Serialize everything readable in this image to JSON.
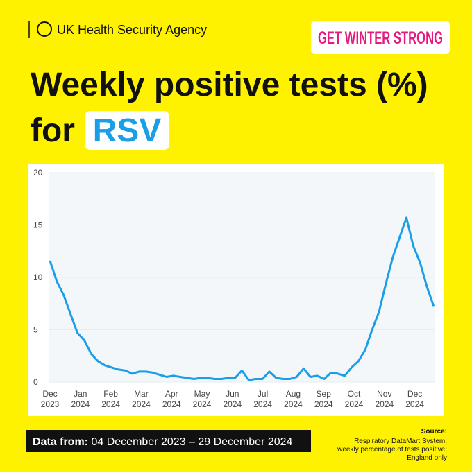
{
  "header": {
    "agency": "UK Health Security Agency",
    "badge": "GET WINTER STRONG",
    "title_line1": "Weekly positive tests (%)",
    "title_line2": "for",
    "title_highlight": "RSV"
  },
  "chart_data": {
    "type": "line",
    "color": "#1a9ee8",
    "ylim": [
      0,
      20
    ],
    "yticks": [
      0,
      5,
      10,
      15,
      20
    ],
    "x_ticks": [
      {
        "month": "Dec",
        "year": "2023"
      },
      {
        "month": "Jan",
        "year": "2024"
      },
      {
        "month": "Feb",
        "year": "2024"
      },
      {
        "month": "Mar",
        "year": "2024"
      },
      {
        "month": "Apr",
        "year": "2024"
      },
      {
        "month": "May",
        "year": "2024"
      },
      {
        "month": "Jun",
        "year": "2024"
      },
      {
        "month": "Jul",
        "year": "2024"
      },
      {
        "month": "Aug",
        "year": "2024"
      },
      {
        "month": "Sep",
        "year": "2024"
      },
      {
        "month": "Oct",
        "year": "2024"
      },
      {
        "month": "Nov",
        "year": "2024"
      },
      {
        "month": "Dec",
        "year": "2024"
      }
    ],
    "values": [
      11.6,
      9.6,
      8.3,
      6.5,
      4.7,
      4.0,
      2.7,
      2.0,
      1.6,
      1.4,
      1.2,
      1.1,
      0.8,
      1.0,
      1.0,
      0.9,
      0.7,
      0.5,
      0.6,
      0.5,
      0.4,
      0.3,
      0.4,
      0.4,
      0.3,
      0.3,
      0.4,
      0.4,
      1.1,
      0.2,
      0.3,
      0.3,
      1.0,
      0.4,
      0.3,
      0.3,
      0.5,
      1.3,
      0.5,
      0.6,
      0.3,
      0.9,
      0.8,
      0.6,
      1.4,
      2.0,
      3.1,
      5.0,
      6.7,
      9.4,
      11.9,
      13.8,
      15.7,
      13.0,
      11.4,
      9.1,
      7.2
    ]
  },
  "footer": {
    "data_from_label": "Data from:",
    "data_from_range": "04 December 2023 – 29 December 2024",
    "source_title": "Source:",
    "source_lines": [
      "Respiratory DataMart System;",
      "weekly percentage of tests positive;",
      "England only"
    ]
  }
}
